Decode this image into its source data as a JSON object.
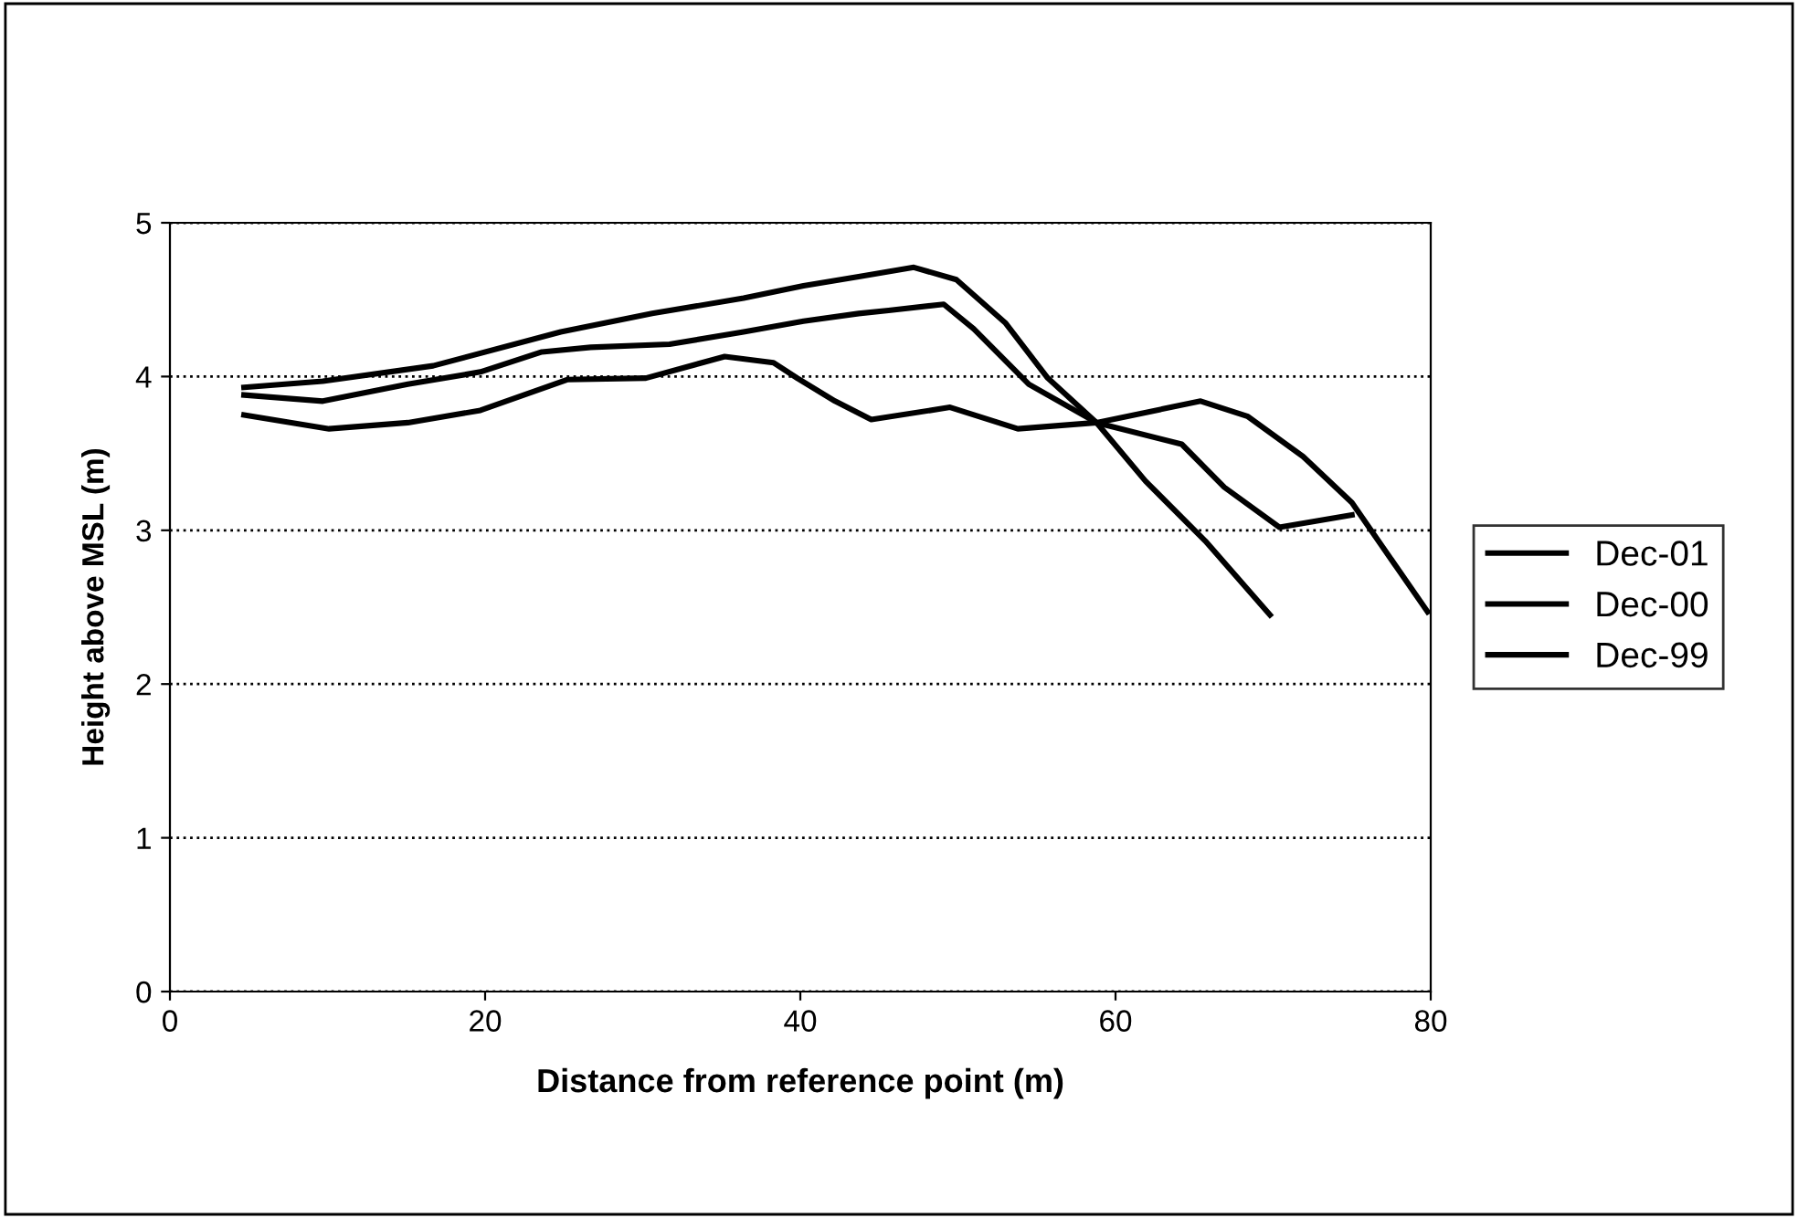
{
  "chart_data": {
    "type": "line",
    "xlabel": "Distance from reference point (m)",
    "ylabel": "Height above MSL (m)",
    "xlim": [
      0,
      80
    ],
    "xticks": [
      0,
      20,
      40,
      60,
      80
    ],
    "ylim": [
      0,
      5
    ],
    "yticks": [
      0,
      1,
      2,
      3,
      4,
      5
    ],
    "grid": "y",
    "legend": "right",
    "line_style": "solid",
    "series": [
      {
        "name": "Dec-01",
        "color": "#000000",
        "x": [
          4.7,
          9.7,
          16.7,
          24.8,
          30.6,
          36.4,
          40.2,
          43.7,
          47.2,
          49.9,
          53,
          55.7,
          58.8,
          61.9,
          65.7,
          69.8
        ],
        "values": [
          3.93,
          3.97,
          4.07,
          4.29,
          4.41,
          4.51,
          4.59,
          4.65,
          4.71,
          4.63,
          4.35,
          3.99,
          3.7,
          3.32,
          2.93,
          2.45
        ]
      },
      {
        "name": "Dec-00",
        "color": "#000000",
        "x": [
          4.7,
          9.7,
          15.1,
          19.7,
          23.6,
          26.7,
          31.7,
          36.4,
          40.2,
          43.7,
          45.6,
          49.1,
          51,
          54.5,
          58.8,
          64.2,
          66.9,
          70.4,
          75
        ],
        "values": [
          3.88,
          3.84,
          3.95,
          4.03,
          4.16,
          4.19,
          4.21,
          4.29,
          4.36,
          4.41,
          4.43,
          4.47,
          4.31,
          3.95,
          3.7,
          3.56,
          3.28,
          3.02,
          3.1
        ]
      },
      {
        "name": "Dec-99",
        "color": "#000000",
        "x": [
          4.7,
          10.1,
          15.1,
          19.7,
          25.2,
          30.2,
          35.2,
          38.3,
          39.8,
          42.2,
          44.5,
          49.5,
          53.8,
          58.8,
          65.4,
          68.4,
          71.9,
          75,
          79.8
        ],
        "values": [
          3.75,
          3.66,
          3.7,
          3.78,
          3.98,
          3.99,
          4.13,
          4.09,
          3.99,
          3.84,
          3.72,
          3.8,
          3.66,
          3.7,
          3.84,
          3.74,
          3.48,
          3.18,
          2.47
        ]
      }
    ]
  }
}
